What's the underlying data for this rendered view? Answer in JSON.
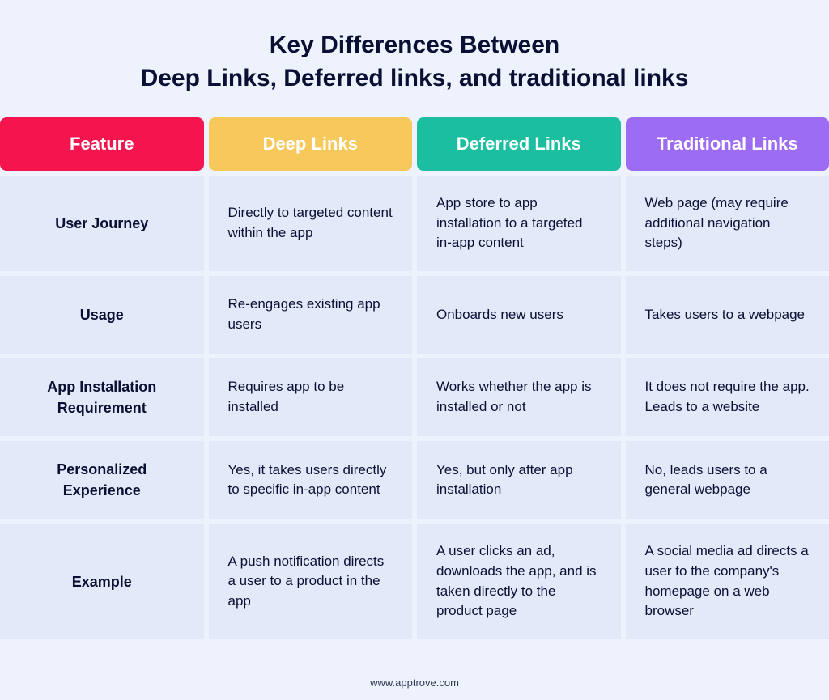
{
  "title_line1": "Key Differences Between",
  "title_line2": "Deep Links, Deferred links, and traditional links",
  "headers": {
    "feature": {
      "label": "Feature",
      "bg": "#f4154f"
    },
    "deep": {
      "label": "Deep Links",
      "bg": "#f7c95c"
    },
    "deferred": {
      "label": "Deferred Links",
      "bg": "#1bbfa0"
    },
    "traditional": {
      "label": "Traditional Links",
      "bg": "#9d6cf5"
    }
  },
  "rows": [
    {
      "feature": "User Journey",
      "deep": "Directly to targeted content within the app",
      "deferred": "App store to app installation to a targeted in-app content",
      "traditional": "Web page (may require additional navigation steps)"
    },
    {
      "feature": "Usage",
      "deep": "Re-engages existing app users",
      "deferred": "Onboards new users",
      "traditional": "Takes users to a webpage"
    },
    {
      "feature": "App Installation Requirement",
      "deep": "Requires app to be installed",
      "deferred": "Works whether the app is installed or not",
      "traditional": "It does not require the app. Leads to a website"
    },
    {
      "feature": "Personalized Experience",
      "deep": "Yes, it takes users directly to specific in-app content",
      "deferred": "Yes, but only after app installation",
      "traditional": "No, leads users to a general webpage"
    },
    {
      "feature": "Example",
      "deep": "A push notification directs a user to a product in the app",
      "deferred": "A user clicks an ad, downloads the app, and is taken directly to the product page",
      "traditional": "A social media ad directs a user to the company's homepage on a web browser"
    }
  ],
  "cell_bg": "#e3e9f9",
  "page_bg": "#eef2fc",
  "text_color": "#0a1033",
  "footer": "www.apptrove.com"
}
